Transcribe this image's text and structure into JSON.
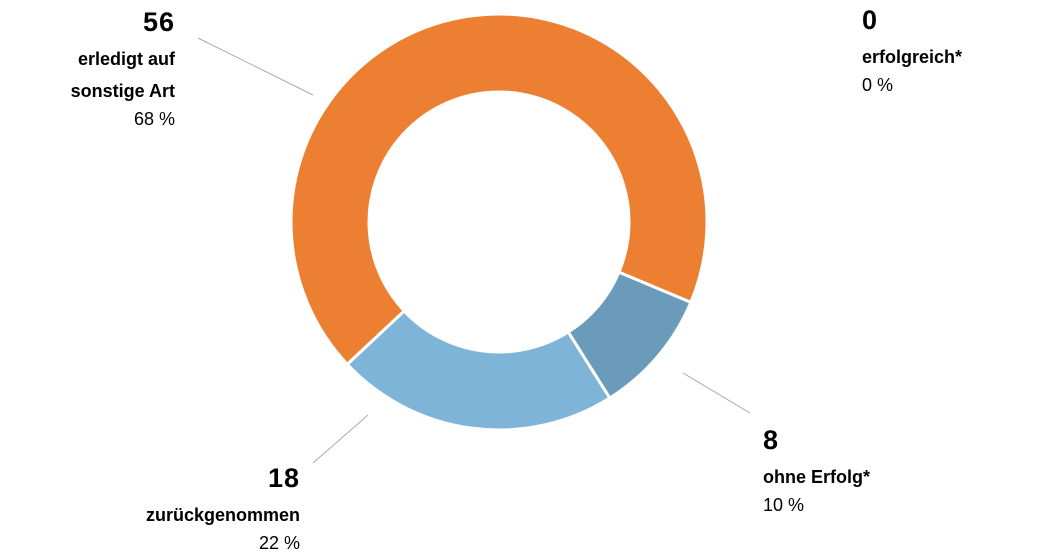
{
  "chart_data": {
    "type": "donut",
    "categories": [
      "erfolgreich*",
      "ohne Erfolg*",
      "zurückgenommen",
      "erledigt auf sonstige Art"
    ],
    "values": [
      0,
      8,
      18,
      56
    ],
    "percent_labels": [
      "0 %",
      "10 %",
      "22 %",
      "68 %"
    ],
    "colors": [
      "#3f6f96",
      "#6a9bba",
      "#7fb4d9",
      "#ed7f33"
    ]
  }
}
